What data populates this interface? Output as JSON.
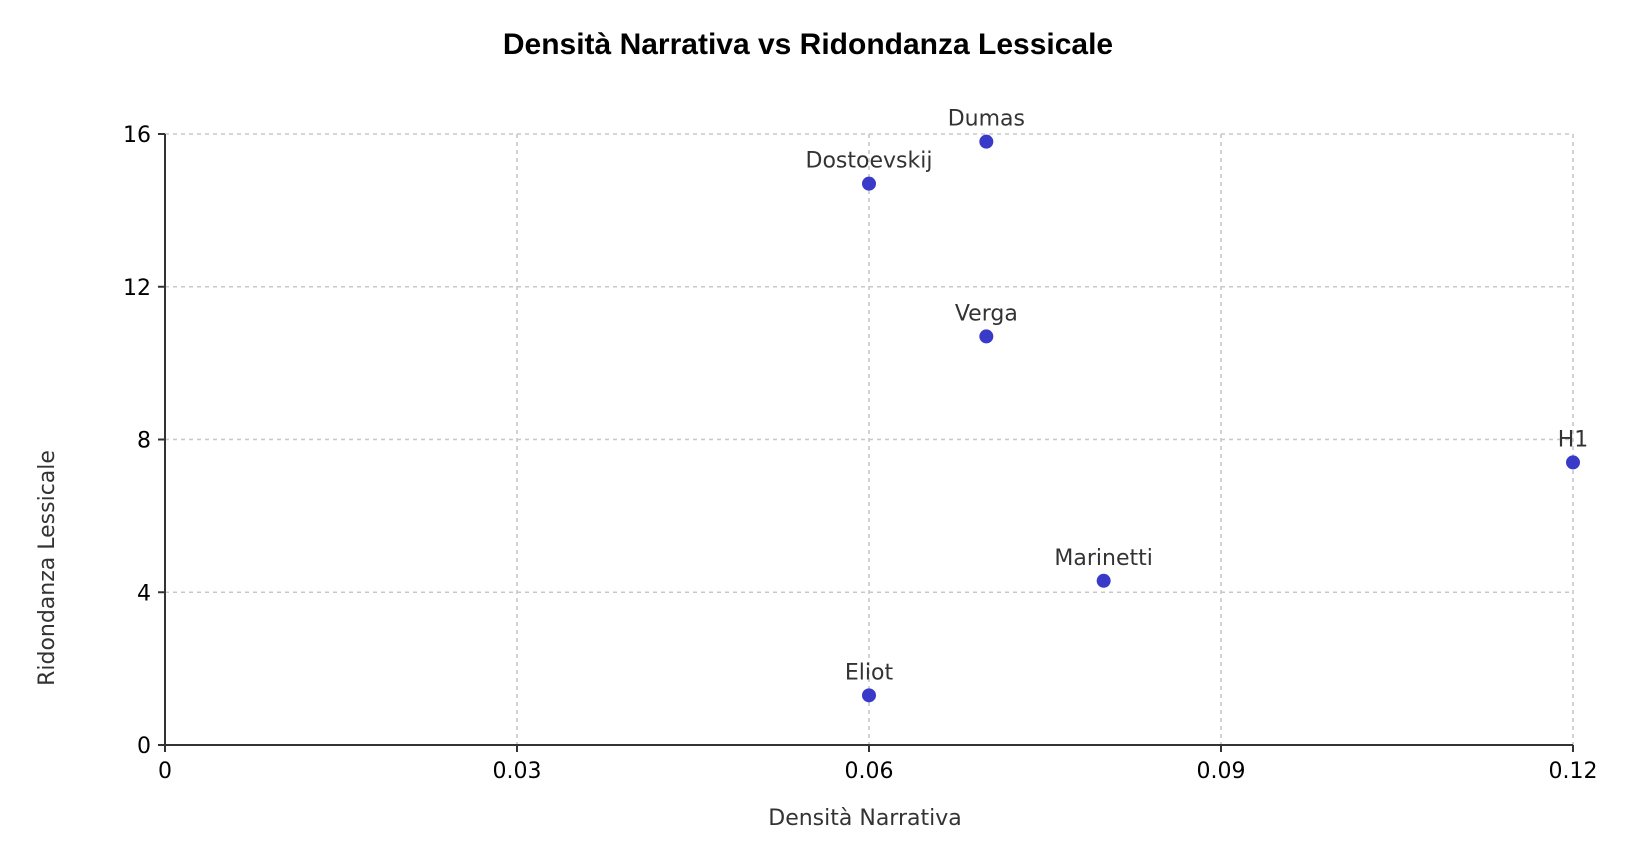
{
  "chart_data": {
    "type": "scatter",
    "title": "Densità Narrativa vs Ridondanza Lessicale",
    "xlabel": "Densità Narrativa",
    "ylabel": "Ridondanza Lessicale",
    "xlim": [
      0,
      0.12
    ],
    "ylim": [
      0,
      16
    ],
    "x_ticks": [
      "0",
      "0.03",
      "0.06",
      "0.09",
      "0.12"
    ],
    "y_ticks": [
      "0",
      "4",
      "8",
      "12",
      "16"
    ],
    "grid": true,
    "marker_color": "#3a3ac8",
    "points": [
      {
        "label": "Dumas",
        "x": 0.07,
        "y": 15.8
      },
      {
        "label": "Dostoevskij",
        "x": 0.06,
        "y": 14.7
      },
      {
        "label": "Verga",
        "x": 0.07,
        "y": 10.7
      },
      {
        "label": "H1",
        "x": 0.12,
        "y": 7.4
      },
      {
        "label": "Marinetti",
        "x": 0.08,
        "y": 4.3
      },
      {
        "label": "Eliot",
        "x": 0.06,
        "y": 1.3
      }
    ]
  }
}
